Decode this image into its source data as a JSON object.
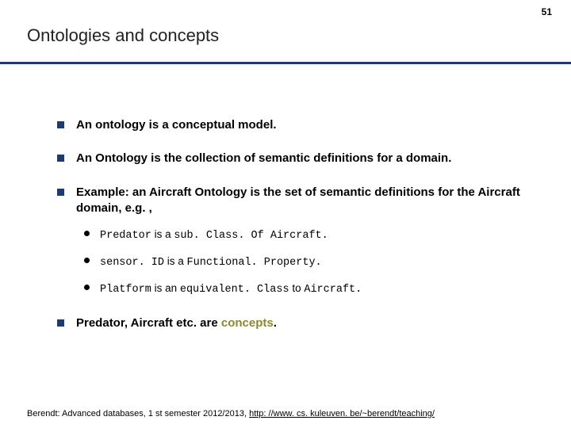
{
  "page_number": "51",
  "title": "Ontologies and concepts",
  "colors": {
    "accent": "#1f3a6e",
    "olive": "#8a8a2a",
    "background": "#ffffff",
    "text": "#000000"
  },
  "bullets": {
    "b1": "An ontology is a conceptual model.",
    "b2": "An Ontology is the collection of semantic definitions for a domain.",
    "b3": "Example: an Aircraft Ontology is the set of semantic definitions for the Aircraft domain, e.g. ,",
    "b3_sub": {
      "s1_a": "Predator",
      "s1_b": " is a ",
      "s1_c": "sub. Class. Of Aircraft.",
      "s2_a": "sensor. ID",
      "s2_b": " is a ",
      "s2_c": "Functional. Property.",
      "s3_a": "Platform",
      "s3_b": " is an ",
      "s3_c": "equivalent. Class",
      "s3_d": " to ",
      "s3_e": "Aircraft."
    },
    "b4_a": "Predator, Aircraft etc. are ",
    "b4_b": "concepts",
    "b4_c": "."
  },
  "footer": {
    "prefix": "Berendt: Advanced databases, 1 st semester 2012/2013, ",
    "link_text": "http: //www. cs. kuleuven. be/~berendt/teaching/",
    "link_href": "http://www.cs.kuleuven.be/~berendt/teaching/"
  }
}
